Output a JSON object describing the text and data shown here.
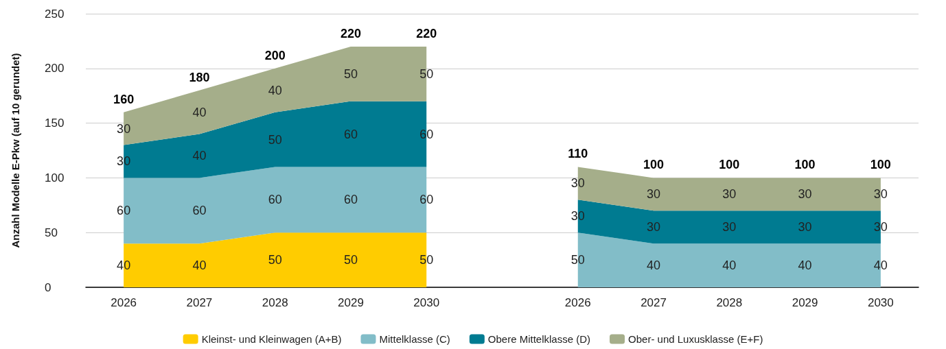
{
  "chart_data": {
    "type": "area",
    "ylabel": "Anzahl Modelle E-Pkw (auf 10 gerundet)",
    "categories": [
      "2026",
      "2027",
      "2028",
      "2029",
      "2030",
      null,
      "2026",
      "2027",
      "2028",
      "2029",
      "2030"
    ],
    "stacked": true,
    "data_labels": true,
    "grid": "y",
    "legend": "bottom",
    "marker": "none",
    "ylim": [
      0,
      250
    ],
    "yticks": [
      0,
      50,
      100,
      150,
      200,
      250
    ],
    "series": [
      {
        "name": "Kleinst- und Kleinwagen (A+B)",
        "color": "#ffcc00",
        "values": [
          40,
          40,
          50,
          50,
          50,
          null,
          null,
          null,
          null,
          null,
          null
        ]
      },
      {
        "name": "Mittelklasse (C)",
        "color": "#82bdc8",
        "values": [
          60,
          60,
          60,
          60,
          60,
          null,
          50,
          40,
          40,
          40,
          40
        ]
      },
      {
        "name": "Obere Mittelklasse (D)",
        "color": "#007b91",
        "values": [
          30,
          40,
          50,
          60,
          60,
          null,
          30,
          30,
          30,
          30,
          30
        ]
      },
      {
        "name": "Ober- und Luxusklasse (E+F)",
        "color": "#a5ae8a",
        "values": [
          30,
          40,
          40,
          50,
          50,
          null,
          30,
          30,
          30,
          30,
          30
        ]
      }
    ],
    "totals": [
      "160",
      "180",
      "200",
      "220",
      "220",
      null,
      "110",
      "100",
      "100",
      "100",
      "100"
    ]
  }
}
